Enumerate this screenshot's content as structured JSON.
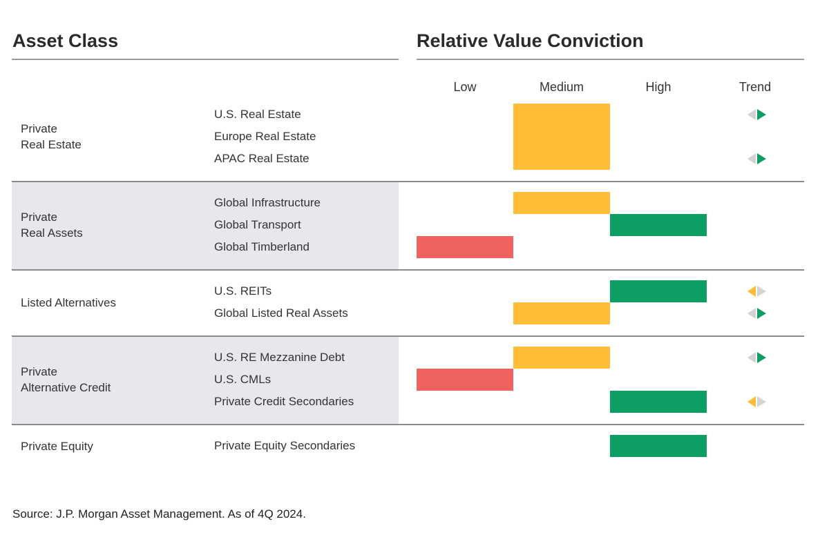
{
  "headers": {
    "left": "Asset Class",
    "right": "Relative Value Conviction"
  },
  "columns": [
    "Low",
    "Medium",
    "High",
    "Trend"
  ],
  "colors": {
    "low": "#f0625f",
    "medium": "#ffbd38",
    "high": "#0c9e63",
    "arrow_neutral": "#d3d3d3",
    "band": "#e8e8ec"
  },
  "chart_data": {
    "type": "table",
    "scale": [
      "Low",
      "Medium",
      "High"
    ],
    "groups": [
      {
        "label": [
          "Private",
          "Real Estate"
        ],
        "banded": false,
        "merged_conviction": "Medium",
        "items": [
          {
            "name": "U.S. Real Estate",
            "conviction": "Medium",
            "trend": "up"
          },
          {
            "name": "Europe Real Estate",
            "conviction": "Medium",
            "trend": null
          },
          {
            "name": "APAC Real Estate",
            "conviction": "Medium",
            "trend": "up"
          }
        ]
      },
      {
        "label": [
          "Private",
          "Real Assets"
        ],
        "banded": true,
        "items": [
          {
            "name": "Global Infrastructure",
            "conviction": "Medium",
            "trend": null
          },
          {
            "name": "Global Transport",
            "conviction": "High",
            "trend": null
          },
          {
            "name": "Global Timberland",
            "conviction": "Low",
            "trend": null
          }
        ]
      },
      {
        "label": [
          "Listed Alternatives"
        ],
        "banded": false,
        "items": [
          {
            "name": "U.S. REITs",
            "conviction": "High",
            "trend": "down"
          },
          {
            "name": "Global Listed Real Assets",
            "conviction": "Medium",
            "trend": "up"
          }
        ]
      },
      {
        "label": [
          "Private",
          "Alternative Credit"
        ],
        "banded": true,
        "items": [
          {
            "name": "U.S. RE Mezzanine Debt",
            "conviction": "Medium",
            "trend": "up"
          },
          {
            "name": "U.S. CMLs",
            "conviction": "Low",
            "trend": null
          },
          {
            "name": "Private Credit Secondaries",
            "conviction": "High",
            "trend": "down"
          }
        ]
      },
      {
        "label": [
          "Private Equity"
        ],
        "banded": false,
        "items": [
          {
            "name": "Private Equity Secondaries",
            "conviction": "High",
            "trend": null
          }
        ]
      }
    ]
  },
  "source": "Source: J.P. Morgan Asset Management. As of 4Q 2024."
}
